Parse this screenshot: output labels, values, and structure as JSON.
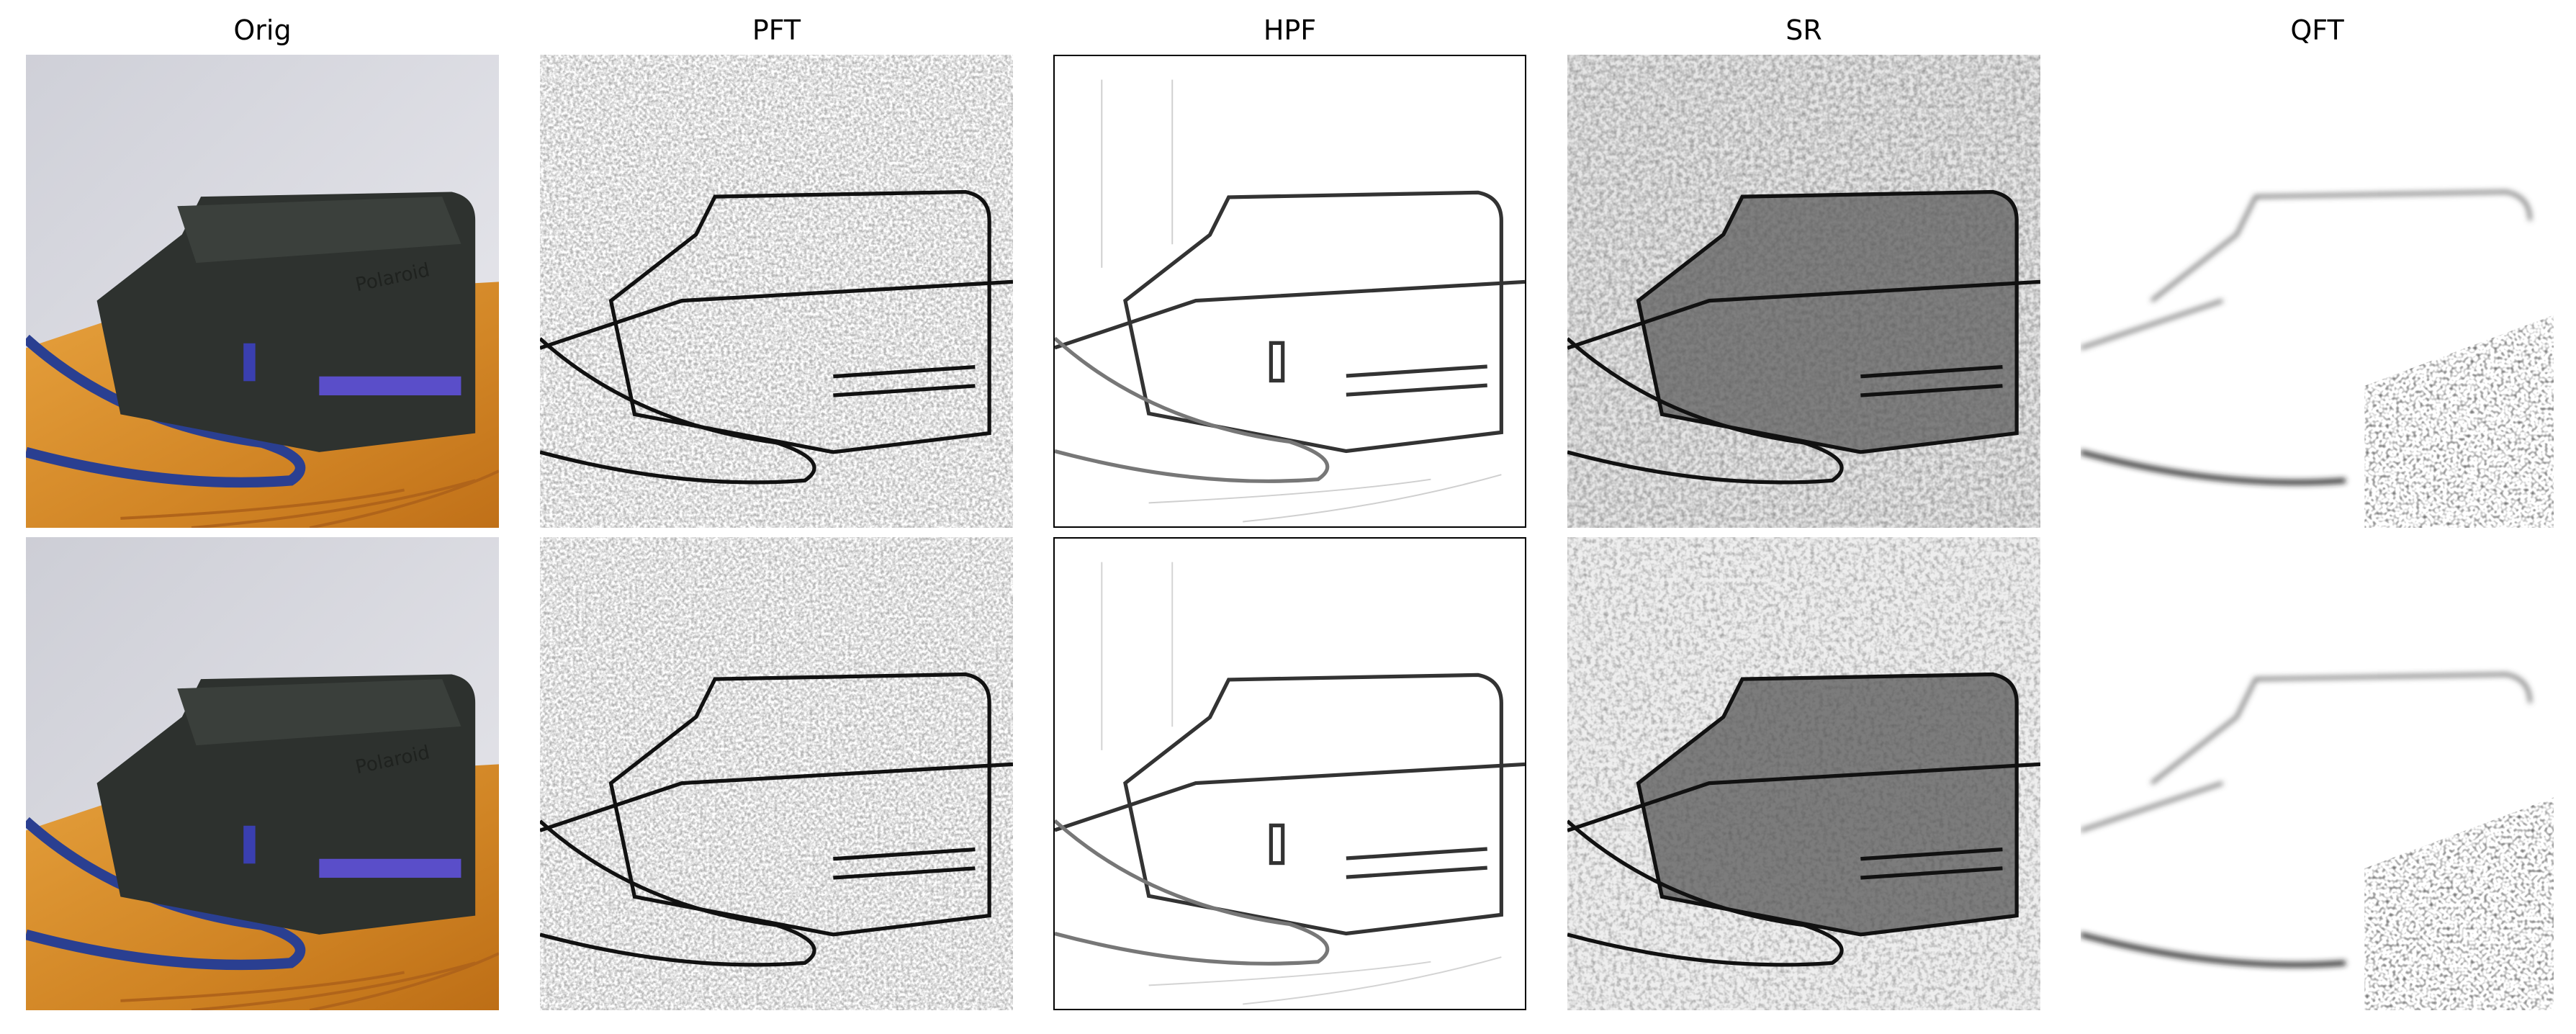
{
  "figure": {
    "columns": [
      {
        "id": "orig",
        "title": "Orig"
      },
      {
        "id": "pft",
        "title": "PFT"
      },
      {
        "id": "hpf",
        "title": "HPF"
      },
      {
        "id": "sr",
        "title": "SR"
      },
      {
        "id": "qft",
        "title": "QFT"
      }
    ],
    "rows": [
      "row-1",
      "row-2"
    ],
    "subject": "polaroid-camera-on-wooden-table",
    "camera_logo_text": "Polaroid",
    "colors": {
      "wall": "#d7d7dd",
      "table": "#d58a2a",
      "camera_body": "#2f332f",
      "strap": "#2a3f91",
      "stripe": "#5a4ec9"
    }
  }
}
